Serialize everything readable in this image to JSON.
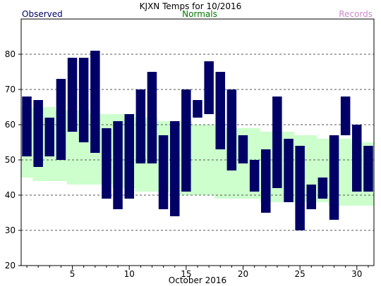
{
  "chart_data": {
    "type": "bar",
    "title": "KJXN Temps for 10/2016",
    "legend": {
      "observed_label": "Observed",
      "normals_label": "Normals",
      "records_label": "Records",
      "placement": "top"
    },
    "xlabel": "October 2016",
    "ylabel": "",
    "xlim": [
      0.5,
      31.5
    ],
    "ylim": [
      20,
      90
    ],
    "x_ticks": [
      5,
      10,
      15,
      20,
      25,
      30
    ],
    "y_ticks": [
      20,
      30,
      40,
      50,
      60,
      70,
      80
    ],
    "gridlines": "horizontal dashed",
    "colors": {
      "observed": "#000066",
      "normals": "#ccffcc",
      "observed_legend": "#000066",
      "normals_legend": "#007700",
      "records_legend": "#cc88cc",
      "grid": "#555555",
      "axis": "#000000"
    },
    "days": [
      1,
      2,
      3,
      4,
      5,
      6,
      7,
      8,
      9,
      10,
      11,
      12,
      13,
      14,
      15,
      16,
      17,
      18,
      19,
      20,
      21,
      22,
      23,
      24,
      25,
      26,
      27,
      28,
      29,
      30,
      31
    ],
    "observed_high": [
      68,
      67,
      62,
      73,
      79,
      79,
      81,
      59,
      61,
      63,
      70,
      75,
      57,
      61,
      70,
      67,
      78,
      75,
      70,
      57,
      50,
      53,
      68,
      56,
      54,
      43,
      45,
      57,
      68,
      60,
      54
    ],
    "observed_low": [
      51,
      48,
      51,
      50,
      58,
      55,
      52,
      39,
      36,
      39,
      49,
      49,
      36,
      34,
      41,
      62,
      63,
      53,
      47,
      49,
      41,
      35,
      42,
      38,
      30,
      36,
      39,
      33,
      57,
      41,
      41
    ],
    "normal_high": [
      65,
      65,
      65,
      64,
      64,
      64,
      63,
      63,
      63,
      63,
      62,
      62,
      61,
      61,
      61,
      60,
      60,
      60,
      59,
      59,
      59,
      58,
      58,
      58,
      57,
      57,
      56,
      56,
      56,
      55,
      55
    ],
    "normal_low": [
      45,
      44,
      44,
      44,
      43,
      43,
      43,
      43,
      42,
      42,
      41,
      41,
      41,
      40,
      40,
      40,
      40,
      39,
      39,
      39,
      39,
      38,
      38,
      38,
      38,
      38,
      38,
      37,
      37,
      37,
      37
    ]
  }
}
